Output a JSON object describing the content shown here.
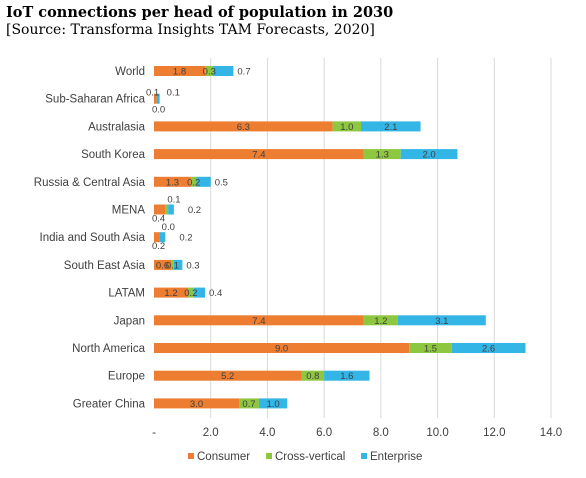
{
  "title": "IoT connections per head of population in 2030",
  "subtitle": "[Source: Transforma Insights TAM Forecasts, 2020]",
  "colors": {
    "consumer": "#ED7D31",
    "cross_vertical": "#8DC63F",
    "enterprise": "#33B5E5",
    "gridline": "#D9D9D9",
    "text": "#404040"
  },
  "chart_data": {
    "type": "bar",
    "orientation": "horizontal",
    "stacked": true,
    "title": "IoT connections per head of population in 2030",
    "subtitle": "[Source: Transforma Insights TAM Forecasts, 2020]",
    "xlabel": "",
    "ylabel": "",
    "xlim": [
      0,
      14
    ],
    "x_ticks": [
      0,
      2,
      4,
      6,
      8,
      10,
      12,
      14
    ],
    "x_tick_labels": [
      "-",
      "2.0",
      "4.0",
      "6.0",
      "8.0",
      "10.0",
      "12.0",
      "14.0"
    ],
    "grid": true,
    "legend_position": "bottom",
    "categories": [
      "World",
      "Sub-Saharan Africa",
      "Australasia",
      "South Korea",
      "Russia & Central Asia",
      "MENA",
      "India and South Asia",
      "South East Asia",
      "LATAM",
      "Japan",
      "North America",
      "Europe",
      "Greater China"
    ],
    "series": [
      {
        "name": "Consumer",
        "values": [
          1.8,
          0.1,
          6.3,
          7.4,
          1.3,
          0.4,
          0.2,
          0.6,
          1.2,
          7.4,
          9.0,
          5.2,
          3.0
        ],
        "labels": [
          "1.8",
          "0.1",
          "6.3",
          "7.4",
          "1.3",
          "0.4",
          "0.2",
          "0.6",
          "1.2",
          "7.4",
          "9.0",
          "5.2",
          "3.0"
        ]
      },
      {
        "name": "Cross-vertical",
        "values": [
          0.3,
          0.0,
          1.0,
          1.3,
          0.2,
          0.1,
          0.0,
          0.1,
          0.2,
          1.2,
          1.5,
          0.8,
          0.7
        ],
        "labels": [
          "0.3",
          "0.0",
          "1.0",
          "1.3",
          "0.2",
          "0.1",
          "0.0",
          "0.1",
          "0.2",
          "1.2",
          "1.5",
          "0.8",
          "0.7"
        ]
      },
      {
        "name": "Enterprise",
        "values": [
          0.7,
          0.1,
          2.1,
          2.0,
          0.5,
          0.2,
          0.2,
          0.3,
          0.4,
          3.1,
          2.6,
          1.6,
          1.0
        ],
        "labels": [
          "0.7",
          "0.1",
          "2.1",
          "2.0",
          "0.5",
          "0.2",
          "0.2",
          "0.3",
          "0.4",
          "3.1",
          "2.6",
          "1.6",
          "1.0"
        ]
      }
    ]
  }
}
